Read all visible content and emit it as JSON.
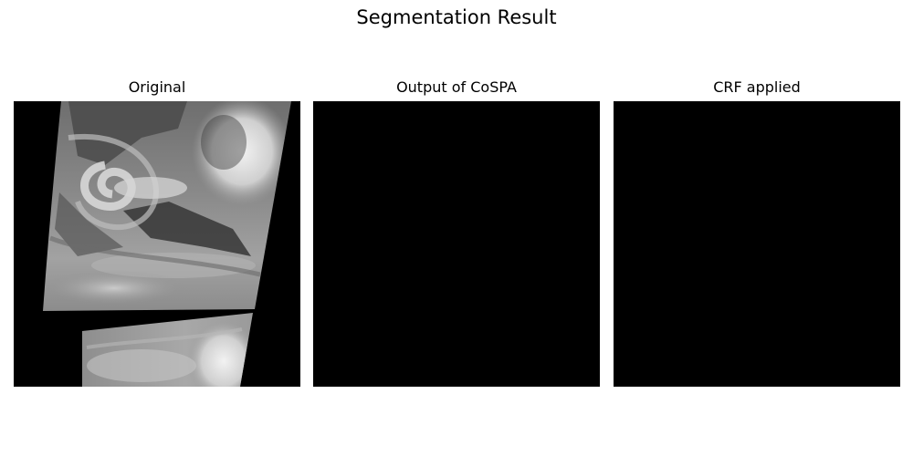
{
  "figure": {
    "title": "Segmentation Result"
  },
  "panels": [
    {
      "title": "Original"
    },
    {
      "title": "Output of CoSPA"
    },
    {
      "title": "CRF applied"
    }
  ],
  "colors": {
    "background": "#ffffff",
    "panel_fill": "#000000",
    "cloud_light": "#e6e6e6",
    "cloud_mid": "#9a9a9a",
    "cloud_dark": "#3a3a3a"
  }
}
